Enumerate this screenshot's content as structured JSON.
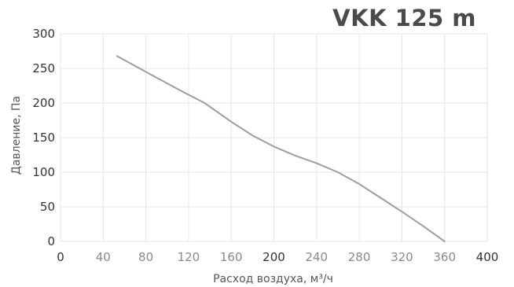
{
  "chart_data": {
    "type": "line",
    "title": "VKK 125 m",
    "xlabel": "Расход воздуха, м³/ч",
    "ylabel": "Давление, Па",
    "xlim": [
      0,
      400
    ],
    "ylim": [
      0,
      300
    ],
    "x_ticks": [
      0,
      40,
      80,
      120,
      160,
      200,
      240,
      280,
      320,
      360,
      400
    ],
    "y_ticks": [
      0,
      50,
      100,
      150,
      200,
      250,
      300
    ],
    "emphasized_x_ticks": [
      0,
      200,
      400
    ],
    "grid": true,
    "colors": {
      "grid": "#e6e6e6",
      "line": "#9e9e9e",
      "tick_emphasis": "#333333",
      "tick_normal": "#8a8a8a",
      "title": "#4a4a4a"
    },
    "series": [
      {
        "x": [
          53,
          80,
          110,
          135,
          160,
          180,
          200,
          220,
          240,
          260,
          280,
          300,
          320,
          340,
          360
        ],
        "y": [
          268,
          245,
          220,
          200,
          173,
          153,
          137,
          124,
          113,
          100,
          83,
          63,
          43,
          22,
          0
        ]
      }
    ]
  }
}
